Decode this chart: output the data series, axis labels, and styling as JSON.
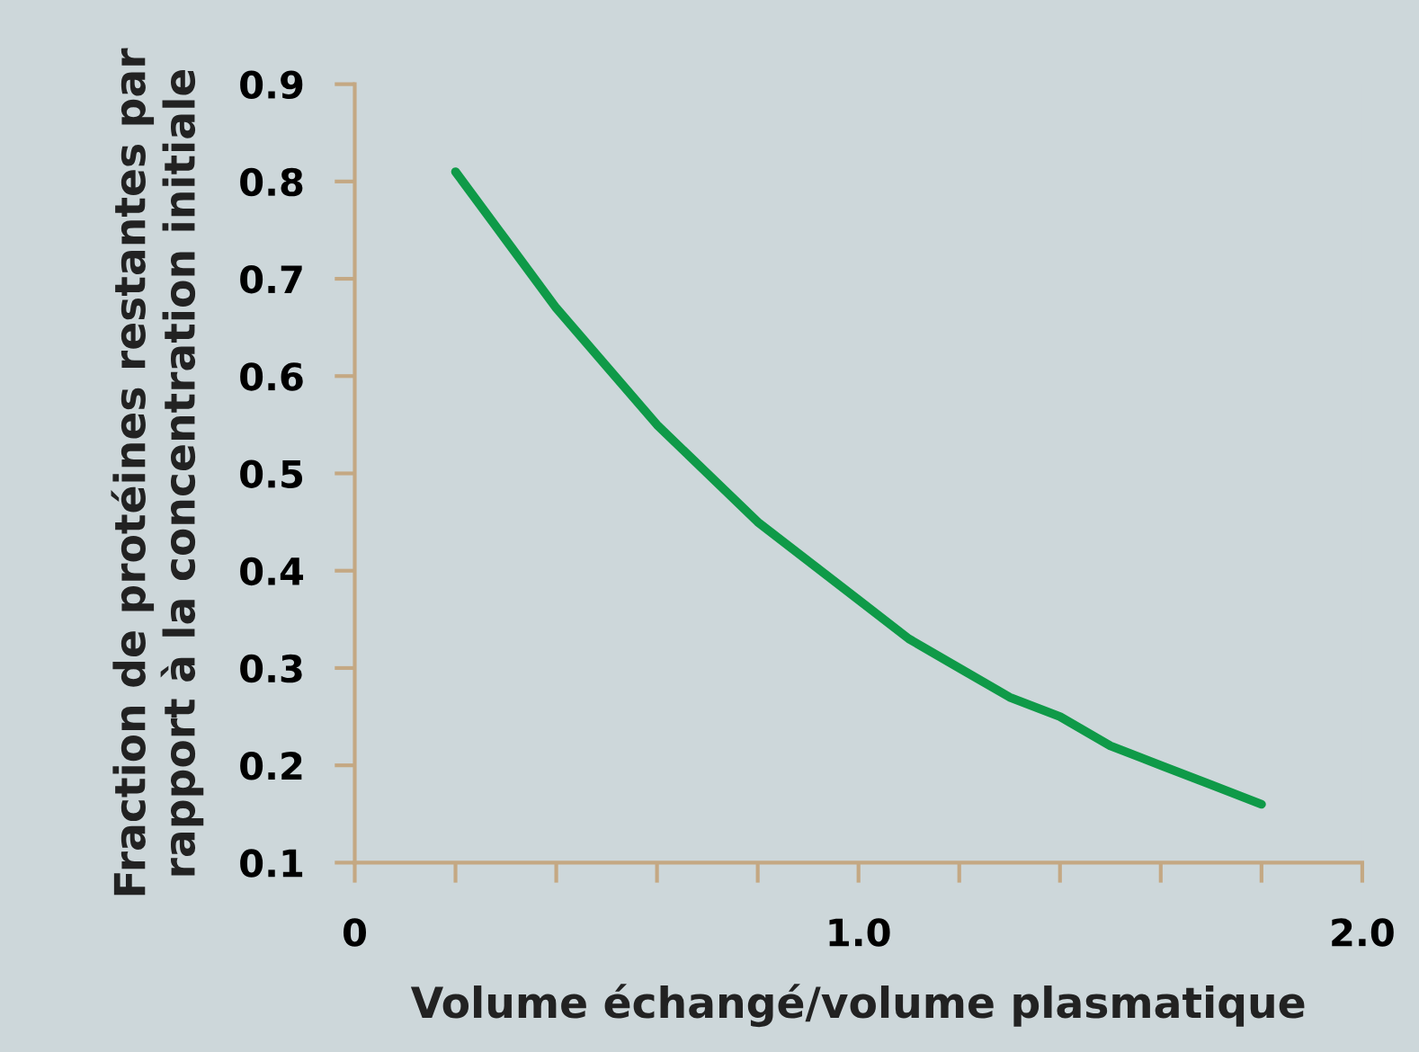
{
  "chart_data": {
    "type": "line",
    "xlabel": "Volume échangé/volume plasmatique",
    "ylabel": "Fraction de protéines restantes par\nrapport à la concentration initiale",
    "x": [
      0.2,
      0.3,
      0.4,
      0.5,
      0.6,
      0.7,
      0.8,
      0.9,
      1.0,
      1.1,
      1.2,
      1.3,
      1.4,
      1.5,
      1.6,
      1.7,
      1.8
    ],
    "series": [
      {
        "color": "#0f9a48",
        "values": [
          0.81,
          0.74,
          0.67,
          0.61,
          0.55,
          0.5,
          0.45,
          0.41,
          0.37,
          0.33,
          0.3,
          0.27,
          0.25,
          0.22,
          0.2,
          0.18,
          0.16
        ]
      }
    ],
    "xlim": [
      0,
      2.0
    ],
    "ylim": [
      0.1,
      0.9
    ],
    "xticks": [
      0,
      {
        "value": 0.2,
        "label": null
      },
      {
        "value": 0.4,
        "label": null
      },
      {
        "value": 0.6,
        "label": null
      },
      {
        "value": 0.8,
        "label": null
      },
      {
        "value": 1.0,
        "label": "1.0"
      },
      {
        "value": 1.2,
        "label": null
      },
      {
        "value": 1.4,
        "label": null
      },
      {
        "value": 1.6,
        "label": null
      },
      {
        "value": 1.8,
        "label": null
      },
      {
        "value": 2.0,
        "label": "2.0"
      }
    ],
    "yticks": [
      0.1,
      0.2,
      0.3,
      0.4,
      0.5,
      0.6,
      0.7,
      0.8,
      0.9
    ],
    "grid": false,
    "marker": "none",
    "line_style": "solid"
  }
}
